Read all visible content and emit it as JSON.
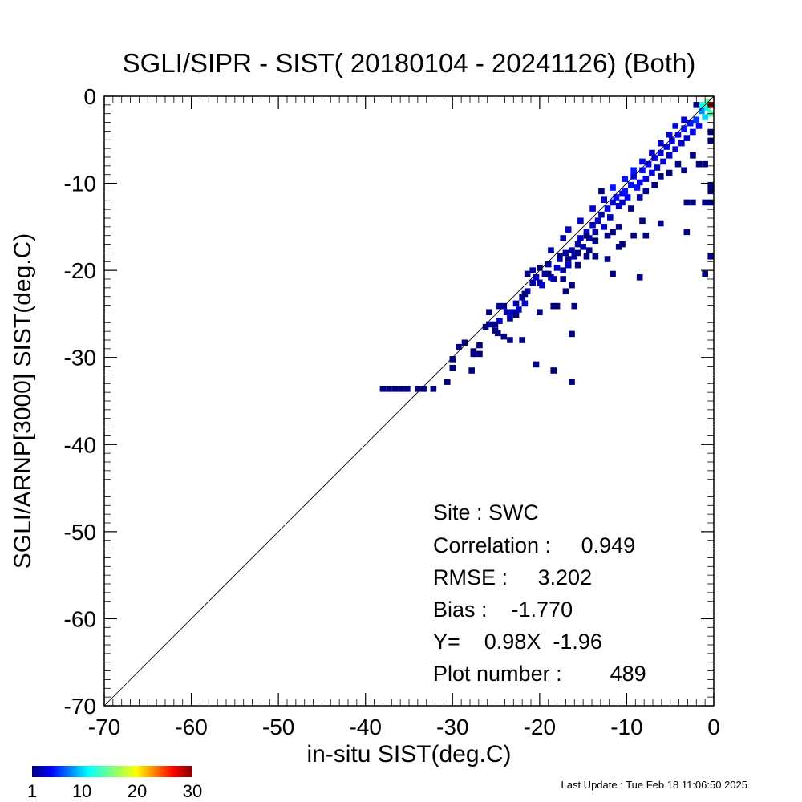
{
  "chart_data": {
    "type": "heatmap",
    "title": "SGLI/SIPR - SIST( 20180104 - 20241126) (Both)",
    "xlabel": "in-situ SIST(deg.C)",
    "ylabel": "SGLI/ARNP[3000]    SIST(deg.C)",
    "xlim": [
      -70,
      0
    ],
    "ylim": [
      -70,
      0
    ],
    "x_ticks": [
      "-70",
      "-60",
      "-50",
      "-40",
      "-30",
      "-20",
      "-10",
      "0"
    ],
    "y_ticks": [
      "-70",
      "-60",
      "-50",
      "-40",
      "-30",
      "-20",
      "-10",
      "0"
    ],
    "one_to_one_line": true,
    "bin_size": 0.7,
    "colorbar": {
      "min": 1,
      "max": 30,
      "ticks": [
        "1",
        "10",
        "20",
        "30"
      ]
    },
    "cells": [
      [
        -38,
        -33.6,
        1
      ],
      [
        -37.3,
        -33.6,
        1
      ],
      [
        -36.6,
        -33.6,
        1
      ],
      [
        -35.9,
        -33.6,
        1
      ],
      [
        -35.2,
        -33.6,
        1
      ],
      [
        -34,
        -33.6,
        1
      ],
      [
        -33.3,
        -33.6,
        1
      ],
      [
        -32.2,
        -33.6,
        1
      ],
      [
        -30.6,
        -32.8,
        1
      ],
      [
        -30,
        -31.2,
        1
      ],
      [
        -30,
        -30.2,
        1
      ],
      [
        -29.3,
        -28.8,
        1
      ],
      [
        -28.6,
        -28.3,
        1
      ],
      [
        -27.8,
        -31.5,
        1
      ],
      [
        -27.6,
        -29.3,
        1
      ],
      [
        -26.9,
        -29.6,
        1
      ],
      [
        -26.9,
        -28.6,
        1
      ],
      [
        -25.8,
        -24.8,
        1
      ],
      [
        -25.8,
        -26.2,
        2
      ],
      [
        -25.1,
        -26.9,
        1
      ],
      [
        -24.8,
        -27.2,
        1
      ],
      [
        -24.6,
        -24.1,
        2
      ],
      [
        -24.6,
        -25.8,
        3
      ],
      [
        -24.1,
        -24.1,
        2
      ],
      [
        -23.8,
        -24.8,
        2
      ],
      [
        -23.4,
        -25.5,
        2
      ],
      [
        -23.4,
        -28.0,
        1
      ],
      [
        -23.1,
        -24.8,
        3
      ],
      [
        -22.7,
        -23.8,
        2
      ],
      [
        -22.4,
        -24.5,
        3
      ],
      [
        -22.0,
        -23.1,
        2
      ],
      [
        -21.7,
        -23.8,
        3
      ],
      [
        -22,
        -28,
        1
      ],
      [
        -21.4,
        -22.4,
        2
      ],
      [
        -21.4,
        -20.4,
        1
      ],
      [
        -20.8,
        -21.4,
        2
      ],
      [
        -20.4,
        -20.8,
        3
      ],
      [
        -20,
        -21.4,
        2
      ],
      [
        -19.7,
        -21.7,
        3
      ],
      [
        -19.4,
        -20.4,
        2
      ],
      [
        -19,
        -19.3,
        2
      ],
      [
        -18.7,
        -20.8,
        3
      ],
      [
        -18.4,
        -21.0,
        2
      ],
      [
        -18.0,
        -19.7,
        3
      ],
      [
        -17.7,
        -18.7,
        2
      ],
      [
        -17.3,
        -20.0,
        2
      ],
      [
        -17.0,
        -18.0,
        2
      ],
      [
        -16.7,
        -19.4,
        3
      ],
      [
        -16.3,
        -17.7,
        2
      ],
      [
        -16.0,
        -18.4,
        2
      ],
      [
        -15.6,
        -17.0,
        2
      ],
      [
        -15.3,
        -16.3,
        3
      ],
      [
        -15.0,
        -17.3,
        2
      ],
      [
        -14.6,
        -15.6,
        3
      ],
      [
        -14.3,
        -16.3,
        2
      ],
      [
        -13.9,
        -14.8,
        3
      ],
      [
        -13.6,
        -15.6,
        2
      ],
      [
        -13.3,
        -14.3,
        3
      ],
      [
        -12.9,
        -13.6,
        2
      ],
      [
        -12.6,
        -15.0,
        3
      ],
      [
        -12.2,
        -12.9,
        4
      ],
      [
        -11.9,
        -13.9,
        3
      ],
      [
        -11.6,
        -12.2,
        3
      ],
      [
        -11.2,
        -11.6,
        4
      ],
      [
        -10.9,
        -12.6,
        3
      ],
      [
        -10.5,
        -11.2,
        4
      ],
      [
        -10.2,
        -10.9,
        5
      ],
      [
        -9.9,
        -11.6,
        4
      ],
      [
        -9.5,
        -10.2,
        5
      ],
      [
        -9.2,
        -9.2,
        4
      ],
      [
        -8.8,
        -10.5,
        5
      ],
      [
        -8.5,
        -9.9,
        4
      ],
      [
        -8.2,
        -8.5,
        5
      ],
      [
        -7.8,
        -9.5,
        4
      ],
      [
        -7.5,
        -7.8,
        4
      ],
      [
        -7.1,
        -8.8,
        4
      ],
      [
        -6.8,
        -7.1,
        4
      ],
      [
        -6.5,
        -8.2,
        3
      ],
      [
        -6.1,
        -6.5,
        4
      ],
      [
        -5.8,
        -7.5,
        3
      ],
      [
        -5.4,
        -5.8,
        4
      ],
      [
        -5.1,
        -6.8,
        3
      ],
      [
        -4.8,
        -5.1,
        4
      ],
      [
        -4.4,
        -6.1,
        3
      ],
      [
        -4.1,
        -4.4,
        4
      ],
      [
        -3.7,
        -5.4,
        3
      ],
      [
        -3.4,
        -3.7,
        5
      ],
      [
        -3.1,
        -4.8,
        3
      ],
      [
        -2.7,
        -3.1,
        5
      ],
      [
        -2.4,
        -4.1,
        4
      ],
      [
        -2.0,
        -2.7,
        6
      ],
      [
        -1.7,
        -3.4,
        4
      ],
      [
        -1.4,
        -1.7,
        8
      ],
      [
        -1.0,
        -2.4,
        10
      ],
      [
        -0.7,
        -1.4,
        12
      ],
      [
        -0.7,
        -0.7,
        14
      ],
      [
        -0.3,
        -1.0,
        30
      ],
      [
        -0.3,
        -2.0,
        14
      ],
      [
        -1.4,
        -1.0,
        12
      ],
      [
        -2.0,
        -1.0,
        1
      ],
      [
        -13.9,
        -12.9,
        3
      ],
      [
        -12.6,
        -11.9,
        3
      ],
      [
        -11.6,
        -10.5,
        5
      ],
      [
        -10.2,
        -9.5,
        5
      ],
      [
        -9.2,
        -8.5,
        5
      ],
      [
        -8.2,
        -7.5,
        4
      ],
      [
        -7.1,
        -6.5,
        3
      ],
      [
        -6.1,
        -5.4,
        3
      ],
      [
        -5.1,
        -4.4,
        3
      ],
      [
        -4.4,
        -3.4,
        3
      ],
      [
        -3.4,
        -2.7,
        3
      ],
      [
        -16.7,
        -15.3,
        3
      ],
      [
        -15.3,
        -14.3,
        3
      ],
      [
        -18.7,
        -17.7,
        2
      ],
      [
        -20.8,
        -20.0,
        2
      ],
      [
        -17.3,
        -16.3,
        2
      ],
      [
        -10.5,
        -12.2,
        3
      ],
      [
        -9.5,
        -12.9,
        1
      ],
      [
        -8.5,
        -11.6,
        2
      ],
      [
        -7.8,
        -10.9,
        2
      ],
      [
        -6.8,
        -10.2,
        1
      ],
      [
        -6.1,
        -9.2,
        1
      ],
      [
        -5.1,
        -8.8,
        1
      ],
      [
        -4.1,
        -7.8,
        1
      ],
      [
        -3.4,
        -8.5,
        1
      ],
      [
        -2.4,
        -6.8,
        1
      ],
      [
        -1.7,
        -7.8,
        1
      ],
      [
        -1.0,
        -7.8,
        1
      ],
      [
        -0.3,
        -4.1,
        1
      ],
      [
        -0.3,
        -5.1,
        1
      ],
      [
        -0.3,
        -10.2,
        1
      ],
      [
        -0.3,
        -10.9,
        1
      ],
      [
        -0.3,
        -18.4,
        1
      ],
      [
        -1.0,
        -20.4,
        1
      ],
      [
        -1.0,
        -12.2,
        1
      ],
      [
        -0.3,
        -12.2,
        1
      ],
      [
        -3.1,
        -12.2,
        1
      ],
      [
        -2.4,
        -12.2,
        1
      ],
      [
        -3.1,
        -15.6,
        1
      ],
      [
        -6.1,
        -14.6,
        1
      ],
      [
        -8.2,
        -14.3,
        1
      ],
      [
        -9.2,
        -16.0,
        1
      ],
      [
        -7.8,
        -16.0,
        1
      ],
      [
        -10.9,
        -15.0,
        1
      ],
      [
        -10.5,
        -17.0,
        1
      ],
      [
        -11.6,
        -15.6,
        1
      ],
      [
        -12.2,
        -16.0,
        1
      ],
      [
        -13.6,
        -16.6,
        1
      ],
      [
        -14.3,
        -17.7,
        1
      ],
      [
        -14.6,
        -18.4,
        1
      ],
      [
        -15.6,
        -18.0,
        1
      ],
      [
        -16.7,
        -18.7,
        1
      ],
      [
        -13.6,
        -18.4,
        1
      ],
      [
        -12.2,
        -18.7,
        1
      ],
      [
        -11.6,
        -20.4,
        1
      ],
      [
        -10.9,
        -17.3,
        1
      ],
      [
        -8.5,
        -20.8,
        1
      ],
      [
        -16.3,
        -21.7,
        1
      ],
      [
        -17.0,
        -22.4,
        1
      ],
      [
        -18.0,
        -24.1,
        1
      ],
      [
        -16.0,
        -24.1,
        1
      ],
      [
        -16.3,
        -27.3,
        1
      ],
      [
        -18.4,
        -24.1,
        1
      ],
      [
        -20.0,
        -24.8,
        1
      ],
      [
        -16.3,
        -32.8,
        1
      ],
      [
        -18.4,
        -31.5,
        1
      ],
      [
        -20.4,
        -30.8,
        1
      ],
      [
        -12.9,
        -10.9,
        1
      ],
      [
        -14.6,
        -16.0,
        1
      ],
      [
        -15.6,
        -19.4,
        1
      ],
      [
        -17.3,
        -21.0,
        1
      ],
      [
        -17.7,
        -18.4,
        1
      ],
      [
        -19.0,
        -20.4,
        1
      ],
      [
        -20.0,
        -19.7,
        1
      ],
      [
        -21.7,
        -22.7,
        1
      ],
      [
        -22.7,
        -25.1,
        1
      ],
      [
        -24.1,
        -27.6,
        1
      ],
      [
        -25.1,
        -26.2,
        1
      ],
      [
        -26.2,
        -26.5,
        1
      ],
      [
        -27.6,
        -29.6,
        1
      ]
    ],
    "annotations": {
      "site": "Site : SWC",
      "correlation": "Correlation :     0.949",
      "rmse": "RMSE :     3.202",
      "bias": "Bias :    -1.770",
      "regression": "Y=    0.98X  -1.96",
      "plot_number": "Plot number :        489"
    }
  },
  "footer": {
    "last_update": "Last Update : Tue Feb 18 11:06:50 2025"
  }
}
